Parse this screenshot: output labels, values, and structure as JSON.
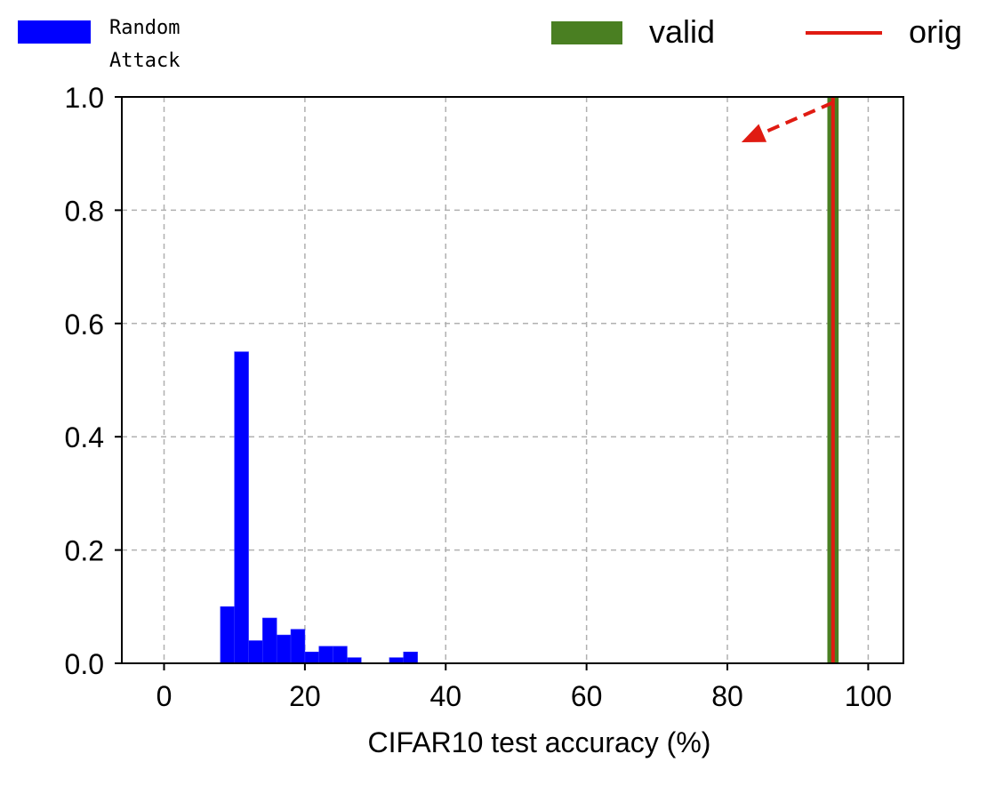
{
  "chart_data": {
    "type": "bar",
    "xlabel": "CIFAR10 test accuracy (%)",
    "ylabel": "",
    "xlim": [
      -6,
      105
    ],
    "ylim": [
      0,
      1.0
    ],
    "x_ticks": [
      0,
      20,
      40,
      60,
      80,
      100
    ],
    "x_tick_labels": [
      "0",
      "20",
      "40",
      "60",
      "80",
      "100"
    ],
    "y_ticks": [
      0.0,
      0.2,
      0.4,
      0.6,
      0.8,
      1.0
    ],
    "y_tick_labels": [
      "0.0",
      "0.2",
      "0.4",
      "0.6",
      "0.8",
      "1.0"
    ],
    "grid": true,
    "legend": {
      "placement": "top",
      "entries": [
        {
          "label_line1": "Random",
          "label_line2": "Attack",
          "color": "#0000ff",
          "kind": "patch"
        },
        {
          "label": "valid",
          "color": "#4a7f22",
          "kind": "patch"
        },
        {
          "label": "orig",
          "color": "#e01b12",
          "kind": "line"
        }
      ]
    },
    "series": [
      {
        "name": "Random Attack",
        "color": "#0000ff",
        "bin_width": 2,
        "bin_starts": [
          8,
          10,
          12,
          14,
          16,
          18,
          20,
          22,
          24,
          26,
          28,
          30,
          32,
          34
        ],
        "values": [
          0.1,
          0.55,
          0.04,
          0.08,
          0.05,
          0.06,
          0.02,
          0.03,
          0.03,
          0.01,
          0.0,
          0.0,
          0.01,
          0.02
        ]
      },
      {
        "name": "valid",
        "color": "#4a7f22",
        "bin_start": 94.2,
        "bin_width": 1.6,
        "value": 1.0
      },
      {
        "name": "orig",
        "color": "#e01b12",
        "x": 95.0
      }
    ],
    "annotation": {
      "kind": "dashed-arrow",
      "color": "#e01b12",
      "from": [
        95,
        0.99
      ],
      "to": [
        82,
        0.92
      ]
    }
  }
}
